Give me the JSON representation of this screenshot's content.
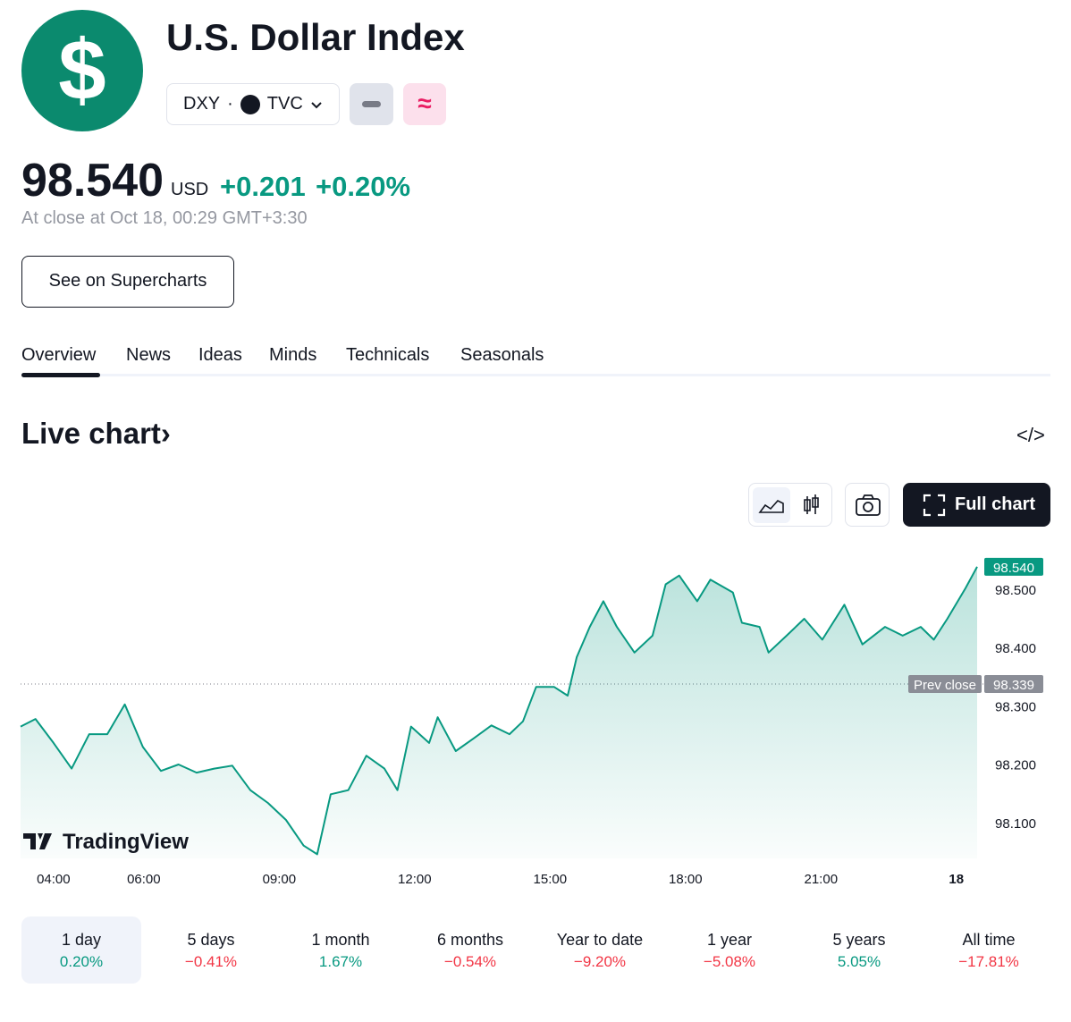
{
  "header": {
    "title": "U.S. Dollar Index",
    "logo": "$",
    "symbol": "DXY",
    "separator": "·",
    "exchange": "TVC",
    "badge": "≈"
  },
  "quote": {
    "price": "98.540",
    "currency": "USD",
    "change": "+0.201",
    "change_percent": "+0.20%",
    "status": "At close at Oct 18, 00:29 GMT+3:30"
  },
  "buttons": {
    "supercharts": "See on Supercharts",
    "full_chart": "Full chart"
  },
  "tabs": [
    "Overview",
    "News",
    "Ideas",
    "Minds",
    "Technicals",
    "Seasonals"
  ],
  "section": {
    "title": "Live chart",
    "arrow": "›",
    "embed": "</>"
  },
  "chart_data": {
    "type": "line",
    "watermark": "TradingView",
    "price_label": "98.540",
    "prev_close": {
      "label": "Prev close",
      "value": 98.339,
      "value_label": "98.339"
    },
    "x": [
      3.27,
      3.6,
      4,
      4.4,
      4.79,
      5.19,
      5.58,
      5.98,
      6.38,
      6.77,
      7.17,
      7.56,
      7.96,
      8.36,
      8.75,
      9.15,
      9.54,
      9.84,
      10.14,
      10.53,
      10.93,
      11.33,
      11.62,
      11.92,
      12.32,
      12.51,
      12.91,
      13.31,
      13.7,
      14.1,
      14.4,
      14.69,
      15.09,
      15.39,
      15.59,
      15.88,
      16.18,
      16.48,
      16.87,
      17.27,
      17.56,
      17.86,
      18.26,
      18.55,
      19.05,
      19.25,
      19.64,
      19.84,
      20.24,
      20.63,
      21.03,
      21.52,
      21.92,
      22.42,
      22.81,
      23.21,
      23.5,
      23.8,
      24.2,
      24.46
    ],
    "series": [
      {
        "name": "DXY",
        "color": "#089981",
        "values": [
          98.266,
          98.279,
          98.238,
          98.194,
          98.253,
          98.253,
          98.304,
          98.231,
          98.19,
          98.201,
          98.187,
          98.194,
          98.199,
          98.157,
          98.135,
          98.106,
          98.062,
          98.047,
          98.15,
          98.157,
          98.216,
          98.194,
          98.157,
          98.266,
          98.238,
          98.282,
          98.224,
          98.246,
          98.268,
          98.253,
          98.275,
          98.334,
          98.334,
          98.319,
          98.385,
          98.437,
          98.481,
          98.437,
          98.393,
          98.422,
          98.51,
          98.525,
          98.481,
          98.518,
          98.496,
          98.444,
          98.437,
          98.393,
          98.422,
          98.451,
          98.415,
          98.475,
          98.407,
          98.437,
          98.422,
          98.437,
          98.415,
          98.451,
          98.503,
          98.54
        ]
      }
    ],
    "xlim": [
      3.27,
      24.46
    ],
    "ylim": [
      98.04,
      98.569
    ],
    "xticks": [
      {
        "value": 4,
        "label": "04:00"
      },
      {
        "value": 6,
        "label": "06:00"
      },
      {
        "value": 9,
        "label": "09:00"
      },
      {
        "value": 12,
        "label": "12:00"
      },
      {
        "value": 15,
        "label": "15:00"
      },
      {
        "value": 18,
        "label": "18:00"
      },
      {
        "value": 21,
        "label": "21:00"
      },
      {
        "value": 24,
        "label": "18"
      }
    ],
    "yticks": [
      {
        "value": 98.1,
        "label": "98.100"
      },
      {
        "value": 98.2,
        "label": "98.200"
      },
      {
        "value": 98.3,
        "label": "98.300"
      },
      {
        "value": 98.4,
        "label": "98.400"
      },
      {
        "value": 98.5,
        "label": "98.500"
      }
    ]
  },
  "periods": [
    {
      "label": "1 day",
      "change": "0.20%"
    },
    {
      "label": "5 days",
      "change": "−0.41%"
    },
    {
      "label": "1 month",
      "change": "1.67%"
    },
    {
      "label": "6 months",
      "change": "−0.54%"
    },
    {
      "label": "Year to date",
      "change": "−9.20%"
    },
    {
      "label": "1 year",
      "change": "−5.08%"
    },
    {
      "label": "5 years",
      "change": "5.05%"
    },
    {
      "label": "All time",
      "change": "−17.81%"
    }
  ]
}
